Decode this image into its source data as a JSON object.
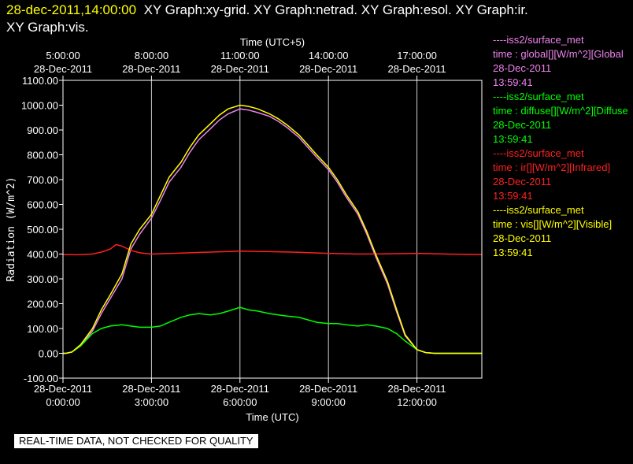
{
  "header": {
    "time": "28-dec-2011,14:00:00",
    "graphs_line1": "XY Graph:xy-grid.  XY Graph:netrad.  XY Graph:esol.  XY Graph:ir.",
    "graphs_line2": "XY Graph:vis."
  },
  "legend": [
    {
      "source": "----iss2/surface_met",
      "var": "time : global[][W/m^2][Global",
      "date": "28-Dec-2011",
      "time": "13:59:41",
      "color": "#ee82ee"
    },
    {
      "source": "----iss2/surface_met",
      "var": "time : diffuse[][W/m^2][Diffuse",
      "date": "28-Dec-2011",
      "time": "13:59:41",
      "color": "#00ff00"
    },
    {
      "source": "----iss2/surface_met",
      "var": "time : ir[][W/m^2][Infrared]",
      "date": "28-Dec-2011",
      "time": "13:59:41",
      "color": "#ff2020"
    },
    {
      "source": "----iss2/surface_met",
      "var": "time : vis[][W/m^2][Visible]",
      "date": "28-Dec-2011",
      "time": "13:59:41",
      "color": "#ffff00"
    }
  ],
  "notice": "REAL-TIME DATA, NOT CHECKED FOR QUALITY",
  "chart_data": {
    "type": "line",
    "title": "",
    "xlabel": "Time (UTC)",
    "x2label": "Time (UTC+5)",
    "ylabel": "Radiation (W/m^2)",
    "xlim": [
      0,
      14.2
    ],
    "ylim": [
      -100,
      1100
    ],
    "grid": true,
    "legend_position": "right",
    "yticks": [
      -100,
      0,
      100,
      200,
      300,
      400,
      500,
      600,
      700,
      800,
      900,
      1000,
      1100
    ],
    "ytick_labels": [
      "-100.00",
      "0.00",
      "100.00",
      "200.00",
      "300.00",
      "400.00",
      "500.00",
      "600.00",
      "700.00",
      "800.00",
      "900.00",
      "1000.00",
      "1100.00"
    ],
    "xticks": [
      0,
      3,
      6,
      9,
      12
    ],
    "xtick_labels": [
      [
        "28-Dec-2011",
        "0:00:00"
      ],
      [
        "28-Dec-2011",
        "3:00:00"
      ],
      [
        "28-Dec-2011",
        "6:00:00"
      ],
      [
        "28-Dec-2011",
        "9:00:00"
      ],
      [
        "28-Dec-2011",
        "12:00:00"
      ]
    ],
    "x2tick_labels": [
      [
        "5:00:00",
        "28-Dec-2011"
      ],
      [
        "8:00:00",
        "28-Dec-2011"
      ],
      [
        "11:00:00",
        "28-Dec-2011"
      ],
      [
        "14:00:00",
        "28-Dec-2011"
      ],
      [
        "17:00:00",
        "28-Dec-2011"
      ]
    ],
    "series": [
      {
        "name": "global",
        "color": "#ee82ee",
        "x": [
          0,
          0.1,
          0.3,
          0.6,
          1.0,
          1.3,
          1.6,
          2.0,
          2.3,
          2.6,
          3.0,
          3.3,
          3.6,
          4.0,
          4.3,
          4.6,
          5.0,
          5.3,
          5.6,
          6.0,
          6.3,
          6.6,
          7.0,
          7.3,
          7.6,
          8.0,
          8.3,
          8.6,
          9.0,
          9.3,
          9.6,
          10.0,
          10.3,
          10.6,
          11.0,
          11.3,
          11.6,
          12.0,
          12.3,
          12.6,
          13.0,
          14.2
        ],
        "y": [
          0,
          0,
          5,
          30,
          90,
          160,
          220,
          300,
          420,
          480,
          545,
          615,
          690,
          750,
          810,
          860,
          905,
          940,
          965,
          985,
          980,
          970,
          955,
          935,
          910,
          870,
          830,
          790,
          740,
          690,
          630,
          560,
          480,
          390,
          280,
          170,
          70,
          15,
          3,
          0,
          0,
          0
        ]
      },
      {
        "name": "diffuse",
        "color": "#00ff00",
        "x": [
          0,
          0.1,
          0.3,
          0.6,
          1.0,
          1.3,
          1.6,
          2.0,
          2.3,
          2.6,
          3.0,
          3.3,
          3.6,
          4.0,
          4.3,
          4.6,
          5.0,
          5.3,
          5.6,
          6.0,
          6.3,
          6.6,
          7.0,
          7.3,
          7.6,
          8.0,
          8.3,
          8.6,
          9.0,
          9.3,
          9.6,
          10.0,
          10.3,
          10.6,
          11.0,
          11.3,
          11.6,
          12.0,
          12.3,
          12.6,
          13.0,
          14.2
        ],
        "y": [
          0,
          0,
          5,
          30,
          80,
          100,
          110,
          115,
          110,
          105,
          105,
          110,
          125,
          145,
          155,
          160,
          155,
          160,
          170,
          185,
          175,
          170,
          160,
          155,
          150,
          145,
          135,
          125,
          120,
          120,
          115,
          110,
          115,
          110,
          100,
          80,
          50,
          15,
          3,
          0,
          0,
          0
        ]
      },
      {
        "name": "ir",
        "color": "#ff2020",
        "x": [
          0,
          0.5,
          1.0,
          1.3,
          1.6,
          1.8,
          2.0,
          2.3,
          2.6,
          3.0,
          4.0,
          5.0,
          6.0,
          7.0,
          8.0,
          9.0,
          10.0,
          11.0,
          12.0,
          13.0,
          14.2
        ],
        "y": [
          398,
          397,
          400,
          408,
          420,
          438,
          432,
          415,
          405,
          400,
          404,
          408,
          412,
          410,
          407,
          403,
          400,
          401,
          403,
          400,
          398
        ]
      },
      {
        "name": "vis",
        "color": "#ffff00",
        "x": [
          0,
          0.1,
          0.3,
          0.6,
          1.0,
          1.3,
          1.6,
          2.0,
          2.3,
          2.6,
          3.0,
          3.3,
          3.6,
          4.0,
          4.3,
          4.6,
          5.0,
          5.3,
          5.6,
          6.0,
          6.3,
          6.6,
          7.0,
          7.3,
          7.6,
          8.0,
          8.3,
          8.6,
          9.0,
          9.3,
          9.6,
          10.0,
          10.3,
          10.6,
          11.0,
          11.3,
          11.6,
          12.0,
          12.3,
          12.6,
          13.0,
          14.2
        ],
        "y": [
          0,
          0,
          5,
          35,
          100,
          175,
          235,
          320,
          440,
          500,
          560,
          635,
          710,
          770,
          830,
          880,
          925,
          960,
          985,
          1000,
          995,
          985,
          965,
          945,
          920,
          880,
          840,
          800,
          750,
          700,
          640,
          570,
          490,
          400,
          290,
          180,
          75,
          15,
          3,
          0,
          0,
          0
        ]
      }
    ]
  }
}
